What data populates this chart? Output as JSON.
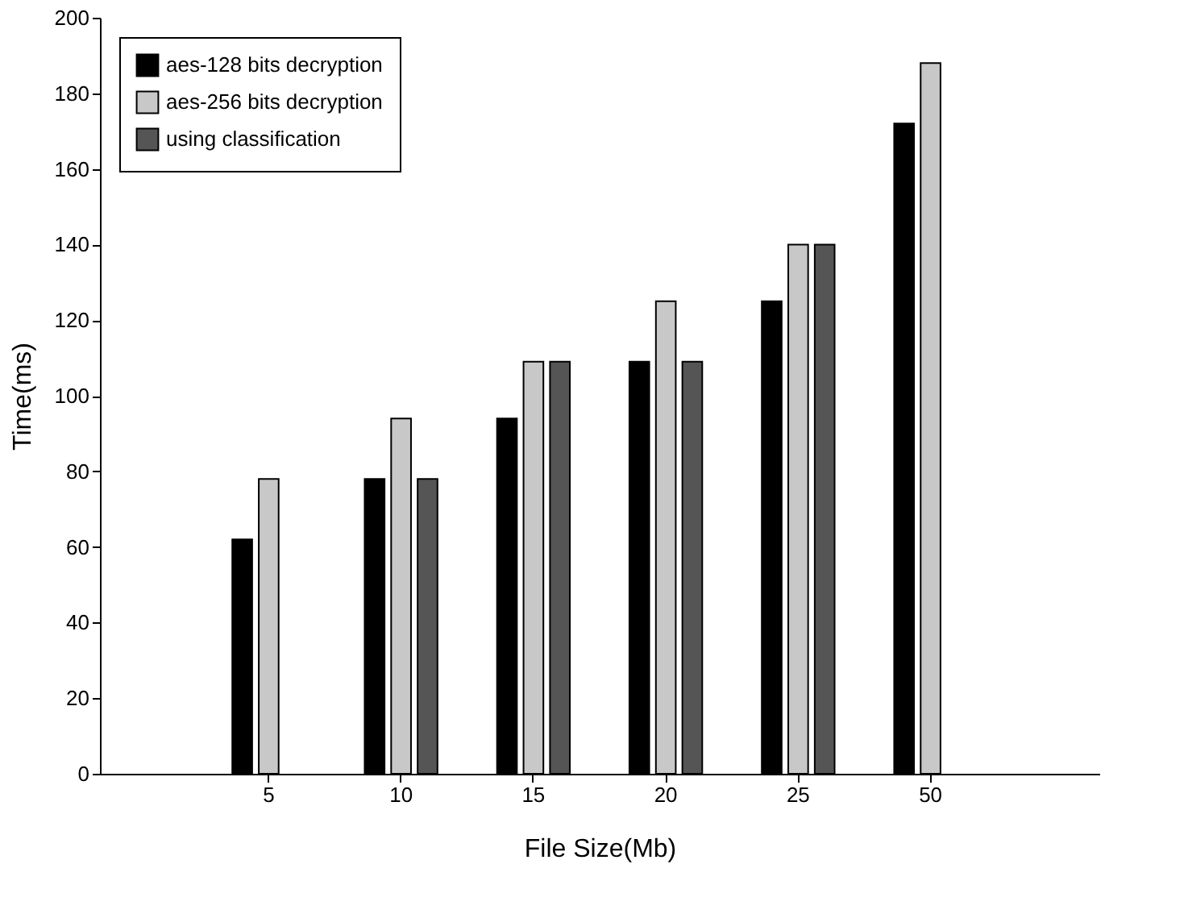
{
  "chart_data": {
    "type": "bar",
    "xlabel": "File Size(Mb)",
    "ylabel": "Time(ms)",
    "categories": [
      "5",
      "10",
      "15",
      "20",
      "25",
      "50"
    ],
    "series": [
      {
        "name": "aes-128 bits decryption",
        "color": "#000000",
        "values": [
          62,
          78,
          94,
          109,
          125,
          172
        ]
      },
      {
        "name": "aes-256 bits decryption",
        "color": "#c8c8c8",
        "values": [
          78,
          94,
          109,
          125,
          140,
          188
        ]
      },
      {
        "name": "using classification",
        "color": "#555555",
        "values": [
          null,
          78,
          109,
          109,
          140,
          null
        ]
      }
    ],
    "ylim": [
      0,
      200
    ],
    "yticks": [
      0,
      20,
      40,
      60,
      80,
      100,
      120,
      140,
      160,
      180,
      200
    ],
    "grid": false,
    "legend": "top left"
  }
}
